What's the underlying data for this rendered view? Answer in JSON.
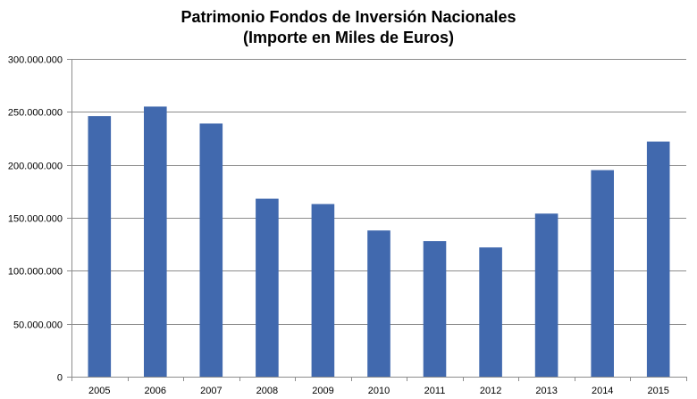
{
  "chart_data": {
    "type": "bar",
    "title": "Patrimonio Fondos de Inversión Nacionales",
    "subtitle": "(Importe en Miles de Euros)",
    "xlabel": "",
    "ylabel": "",
    "categories": [
      "2005",
      "2006",
      "2007",
      "2008",
      "2009",
      "2010",
      "2011",
      "2012",
      "2013",
      "2014",
      "2015"
    ],
    "series": [
      {
        "values": [
          246000000,
          255000000,
          239000000,
          168000000,
          163000000,
          138000000,
          128000000,
          122000000,
          154000000,
          195000000,
          222000000
        ],
        "color": "#4169AE"
      }
    ],
    "ylim": [
      0,
      300000000
    ],
    "yticks": [
      0,
      50000000,
      100000000,
      150000000,
      200000000,
      250000000,
      300000000
    ],
    "ytick_labels": [
      "0",
      "50.000.000",
      "100.000.000",
      "150.000.000",
      "200.000.000",
      "250.000.000",
      "300.000.000"
    ],
    "grid": true,
    "legend": "none"
  }
}
